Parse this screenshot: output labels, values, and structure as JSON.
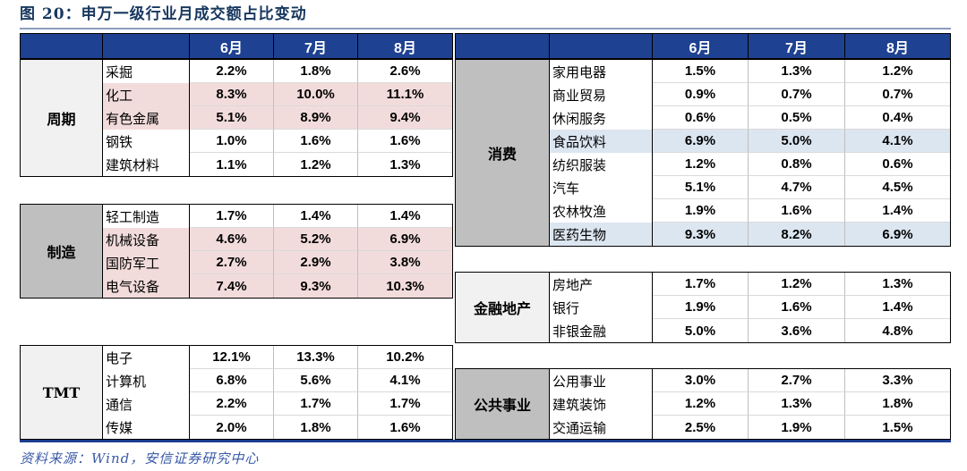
{
  "figure": {
    "title": "图 20：申万一级行业月成交额占比变动",
    "source_note": "资料来源：Wind，安信证券研究中心"
  },
  "months": [
    "6月",
    "7月",
    "8月"
  ],
  "left_table": {
    "groups": [
      {
        "category": "周期",
        "shade": "light",
        "rows": [
          {
            "industry": "采掘",
            "values": [
              "2.2%",
              "1.8%",
              "2.6%"
            ],
            "highlight": "none"
          },
          {
            "industry": "化工",
            "values": [
              "8.3%",
              "10.0%",
              "11.1%"
            ],
            "highlight": "pink"
          },
          {
            "industry": "有色金属",
            "values": [
              "5.1%",
              "8.9%",
              "9.4%"
            ],
            "highlight": "pink"
          },
          {
            "industry": "钢铁",
            "values": [
              "1.0%",
              "1.6%",
              "1.6%"
            ],
            "highlight": "none"
          },
          {
            "industry": "建筑材料",
            "values": [
              "1.1%",
              "1.2%",
              "1.3%"
            ],
            "highlight": "none"
          }
        ]
      },
      {
        "category": "制造",
        "shade": "dark",
        "rows": [
          {
            "industry": "轻工制造",
            "values": [
              "1.7%",
              "1.4%",
              "1.4%"
            ],
            "highlight": "none"
          },
          {
            "industry": "机械设备",
            "values": [
              "4.6%",
              "5.2%",
              "6.9%"
            ],
            "highlight": "pink"
          },
          {
            "industry": "国防军工",
            "values": [
              "2.7%",
              "2.9%",
              "3.8%"
            ],
            "highlight": "pink"
          },
          {
            "industry": "电气设备",
            "values": [
              "7.4%",
              "9.3%",
              "10.3%"
            ],
            "highlight": "pink"
          }
        ]
      },
      {
        "category": "TMT",
        "shade": "light",
        "rows": [
          {
            "industry": "电子",
            "values": [
              "12.1%",
              "13.3%",
              "10.2%"
            ],
            "highlight": "none"
          },
          {
            "industry": "计算机",
            "values": [
              "6.8%",
              "5.6%",
              "4.1%"
            ],
            "highlight": "none"
          },
          {
            "industry": "通信",
            "values": [
              "2.2%",
              "1.7%",
              "1.7%"
            ],
            "highlight": "none"
          },
          {
            "industry": "传媒",
            "values": [
              "2.0%",
              "1.8%",
              "1.6%"
            ],
            "highlight": "none"
          }
        ]
      }
    ]
  },
  "right_table": {
    "groups": [
      {
        "category": "消费",
        "shade": "dark",
        "rows": [
          {
            "industry": "家用电器",
            "values": [
              "1.5%",
              "1.3%",
              "1.2%"
            ],
            "highlight": "none"
          },
          {
            "industry": "商业贸易",
            "values": [
              "0.9%",
              "0.7%",
              "0.7%"
            ],
            "highlight": "none"
          },
          {
            "industry": "休闲服务",
            "values": [
              "0.6%",
              "0.5%",
              "0.4%"
            ],
            "highlight": "none"
          },
          {
            "industry": "食品饮料",
            "values": [
              "6.9%",
              "5.0%",
              "4.1%"
            ],
            "highlight": "blue"
          },
          {
            "industry": "纺织服装",
            "values": [
              "1.2%",
              "0.8%",
              "0.6%"
            ],
            "highlight": "none"
          },
          {
            "industry": "汽车",
            "values": [
              "5.1%",
              "4.7%",
              "4.5%"
            ],
            "highlight": "none"
          },
          {
            "industry": "农林牧渔",
            "values": [
              "1.9%",
              "1.6%",
              "1.4%"
            ],
            "highlight": "none"
          },
          {
            "industry": "医药生物",
            "values": [
              "9.3%",
              "8.2%",
              "6.9%"
            ],
            "highlight": "blue"
          }
        ]
      },
      {
        "category": "金融地产",
        "shade": "light",
        "rows": [
          {
            "industry": "房地产",
            "values": [
              "1.7%",
              "1.2%",
              "1.3%"
            ],
            "highlight": "none"
          },
          {
            "industry": "银行",
            "values": [
              "1.9%",
              "1.6%",
              "1.4%"
            ],
            "highlight": "none"
          },
          {
            "industry": "非银金融",
            "values": [
              "5.0%",
              "3.6%",
              "4.8%"
            ],
            "highlight": "none"
          }
        ]
      },
      {
        "category": "公共事业",
        "shade": "dark",
        "rows": [
          {
            "industry": "公用事业",
            "values": [
              "3.0%",
              "2.7%",
              "3.3%"
            ],
            "highlight": "none"
          },
          {
            "industry": "建筑装饰",
            "values": [
              "1.2%",
              "1.3%",
              "1.8%"
            ],
            "highlight": "none"
          },
          {
            "industry": "交通运输",
            "values": [
              "2.5%",
              "1.9%",
              "1.5%"
            ],
            "highlight": "none"
          }
        ]
      }
    ]
  },
  "colors": {
    "header_bg": "#1E4191",
    "title_text": "#17375E",
    "pink_highlight": "#F2DCDB",
    "blue_highlight": "#DCE6F1",
    "category_light": "#F1F1F1",
    "category_dark": "#BFBFBF",
    "source_text": "#3A5AA8",
    "bottom_rule": "#1B3C8F"
  }
}
